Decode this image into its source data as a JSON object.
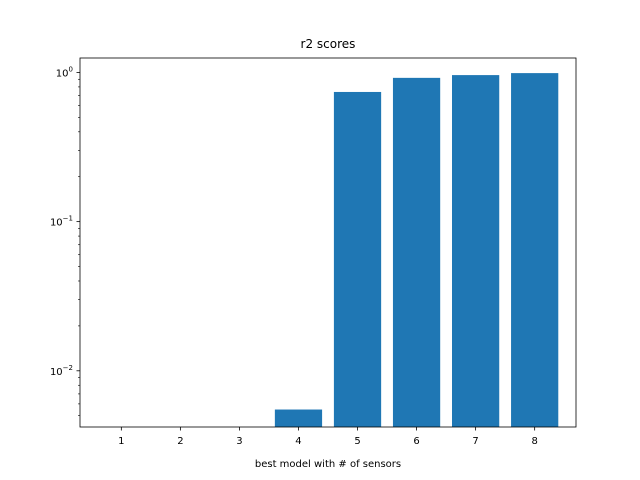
{
  "chart_data": {
    "type": "bar",
    "title": "r2 scores",
    "xlabel": "best model with # of sensors",
    "ylabel": "",
    "yscale": "log",
    "ylim": [
      0.0042,
      1.25
    ],
    "categories": [
      "1",
      "2",
      "3",
      "4",
      "5",
      "6",
      "7",
      "8"
    ],
    "values": [
      null,
      null,
      null,
      0.0055,
      0.74,
      0.92,
      0.96,
      0.99
    ],
    "yticks": [
      {
        "value": 0.01,
        "base": "10",
        "exp": "−2"
      },
      {
        "value": 0.1,
        "base": "10",
        "exp": "−1"
      },
      {
        "value": 1,
        "base": "10",
        "exp": "0"
      }
    ],
    "grid": false,
    "bar_color": "#1f77b4"
  }
}
